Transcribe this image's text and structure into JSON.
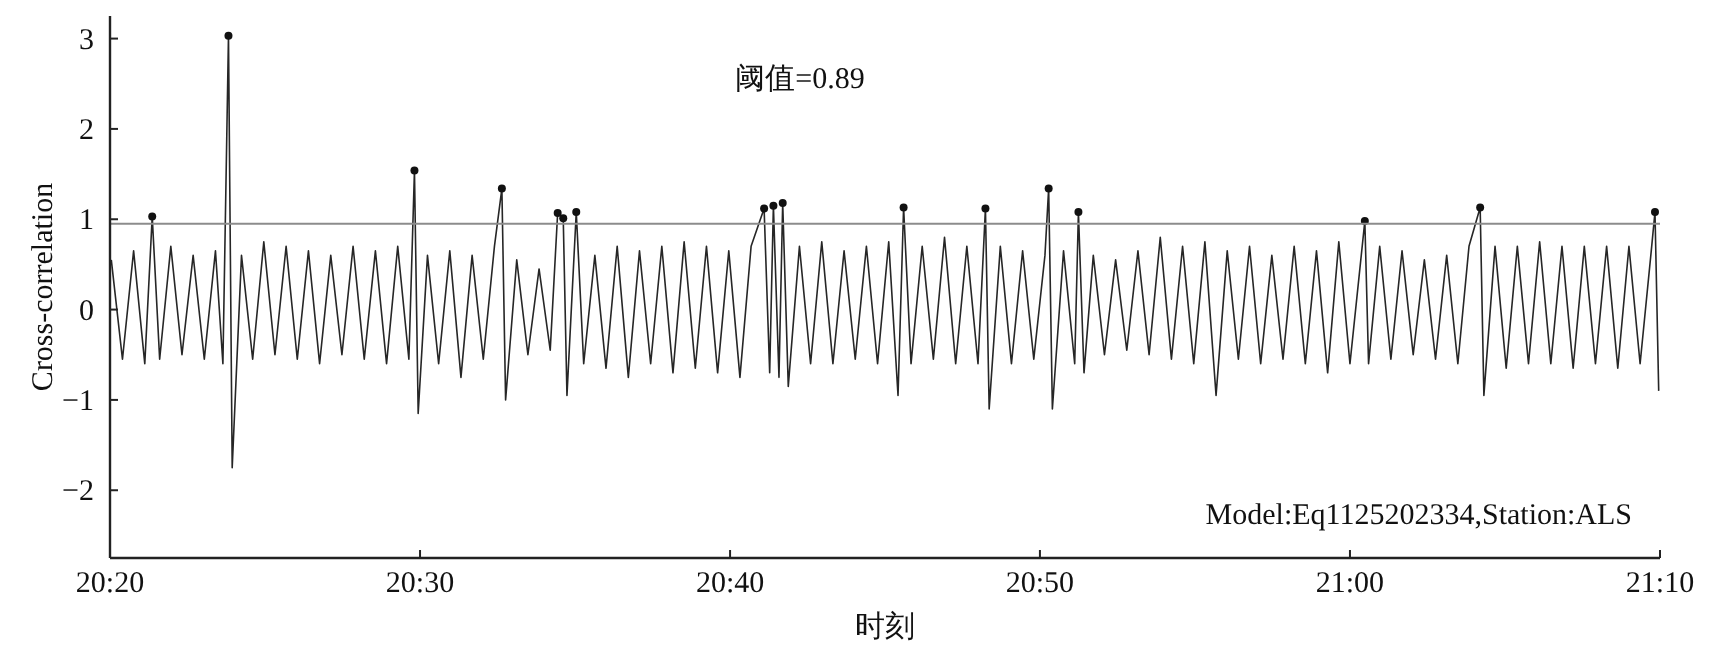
{
  "chart_data": {
    "type": "line",
    "xlabel": "时刻",
    "ylabel": "Cross-correlation",
    "annotations": [
      "阈值=0.89",
      "Model:Eq1125202334,Station:ALS"
    ],
    "xlim": [
      20.3333,
      21.1667
    ],
    "ylim": [
      -2.75,
      3.25
    ],
    "xticks": [
      {
        "value": 20.3333,
        "label": "20:20"
      },
      {
        "value": 20.5,
        "label": "20:30"
      },
      {
        "value": 20.6667,
        "label": "20:40"
      },
      {
        "value": 20.8333,
        "label": "20:50"
      },
      {
        "value": 21,
        "label": "21:00"
      },
      {
        "value": 21.1667,
        "label": "21:10"
      }
    ],
    "yticks": [
      -2,
      -1,
      0,
      1,
      2,
      3
    ],
    "ref_lines": [
      {
        "axis": "y",
        "value": 0.95,
        "color": "#8c8c8c"
      }
    ],
    "series": [
      {
        "type": "line",
        "color": "#262626",
        "x": [
          20.334,
          20.34,
          20.346,
          20.352,
          20.356,
          20.36,
          20.366,
          20.372,
          20.378,
          20.384,
          20.39,
          20.394,
          20.397,
          20.399,
          20.404,
          20.41,
          20.416,
          20.422,
          20.428,
          20.434,
          20.44,
          20.446,
          20.452,
          20.458,
          20.464,
          20.47,
          20.476,
          20.482,
          20.488,
          20.494,
          20.497,
          20.499,
          20.504,
          20.51,
          20.516,
          20.522,
          20.528,
          20.534,
          20.54,
          20.544,
          20.546,
          20.552,
          20.558,
          20.564,
          20.57,
          20.574,
          20.577,
          20.579,
          20.584,
          20.588,
          20.594,
          20.6,
          20.606,
          20.612,
          20.618,
          20.624,
          20.63,
          20.636,
          20.642,
          20.648,
          20.654,
          20.66,
          20.666,
          20.672,
          20.678,
          20.685,
          20.688,
          20.69,
          20.693,
          20.695,
          20.698,
          20.704,
          20.71,
          20.716,
          20.722,
          20.728,
          20.734,
          20.74,
          20.746,
          20.752,
          20.757,
          20.76,
          20.764,
          20.77,
          20.776,
          20.782,
          20.788,
          20.794,
          20.8,
          20.804,
          20.806,
          20.812,
          20.818,
          20.824,
          20.83,
          20.836,
          20.838,
          20.84,
          20.846,
          20.852,
          20.854,
          20.857,
          20.862,
          20.868,
          20.874,
          20.88,
          20.886,
          20.892,
          20.898,
          20.904,
          20.91,
          20.916,
          20.922,
          20.928,
          20.934,
          20.94,
          20.946,
          20.952,
          20.958,
          20.964,
          20.97,
          20.976,
          20.982,
          20.988,
          20.994,
          21.0,
          21.008,
          21.01,
          21.016,
          21.022,
          21.028,
          21.034,
          21.04,
          21.046,
          21.052,
          21.058,
          21.064,
          21.07,
          21.072,
          21.078,
          21.084,
          21.09,
          21.096,
          21.102,
          21.108,
          21.114,
          21.12,
          21.126,
          21.132,
          21.138,
          21.144,
          21.15,
          21.156,
          21.162,
          21.164,
          21.166
        ],
        "values": [
          0.55,
          -0.55,
          0.65,
          -0.6,
          1.03,
          -0.55,
          0.7,
          -0.5,
          0.6,
          -0.55,
          0.65,
          -0.6,
          3.03,
          -1.75,
          0.6,
          -0.55,
          0.75,
          -0.5,
          0.7,
          -0.55,
          0.65,
          -0.6,
          0.6,
          -0.5,
          0.7,
          -0.55,
          0.65,
          -0.6,
          0.7,
          -0.55,
          1.54,
          -1.15,
          0.6,
          -0.6,
          0.65,
          -0.75,
          0.6,
          -0.55,
          0.7,
          1.34,
          -1.0,
          0.55,
          -0.5,
          0.45,
          -0.45,
          1.07,
          1.01,
          -0.95,
          1.08,
          -0.6,
          0.6,
          -0.65,
          0.7,
          -0.75,
          0.65,
          -0.6,
          0.7,
          -0.7,
          0.75,
          -0.65,
          0.7,
          -0.7,
          0.65,
          -0.75,
          0.7,
          1.12,
          -0.7,
          1.15,
          -0.75,
          1.18,
          -0.85,
          0.7,
          -0.6,
          0.75,
          -0.6,
          0.65,
          -0.55,
          0.7,
          -0.6,
          0.75,
          -0.95,
          1.13,
          -0.6,
          0.7,
          -0.55,
          0.8,
          -0.6,
          0.7,
          -0.6,
          1.12,
          -1.1,
          0.7,
          -0.6,
          0.65,
          -0.55,
          0.6,
          1.34,
          -1.1,
          0.65,
          -0.6,
          1.08,
          -0.7,
          0.6,
          -0.5,
          0.55,
          -0.45,
          0.65,
          -0.5,
          0.8,
          -0.55,
          0.7,
          -0.6,
          0.75,
          -0.95,
          0.65,
          -0.55,
          0.7,
          -0.6,
          0.6,
          -0.55,
          0.7,
          -0.6,
          0.65,
          -0.7,
          0.75,
          -0.6,
          0.98,
          -0.6,
          0.7,
          -0.55,
          0.65,
          -0.5,
          0.55,
          -0.55,
          0.6,
          -0.6,
          0.7,
          1.13,
          -0.95,
          0.7,
          -0.65,
          0.7,
          -0.6,
          0.75,
          -0.6,
          0.7,
          -0.65,
          0.7,
          -0.6,
          0.7,
          -0.65,
          0.7,
          -0.6,
          0.65,
          1.08,
          -0.9
        ]
      },
      {
        "type": "scatter",
        "marker": "circle",
        "color": "#111111",
        "x": [
          20.356,
          20.397,
          20.497,
          20.544,
          20.574,
          20.577,
          20.584,
          20.685,
          20.69,
          20.695,
          20.76,
          20.804,
          20.838,
          20.854,
          21.008,
          21.07,
          21.164
        ],
        "values": [
          1.03,
          3.03,
          1.54,
          1.34,
          1.07,
          1.01,
          1.08,
          1.12,
          1.15,
          1.18,
          1.13,
          1.12,
          1.34,
          1.08,
          0.98,
          1.13,
          1.08
        ]
      }
    ]
  }
}
